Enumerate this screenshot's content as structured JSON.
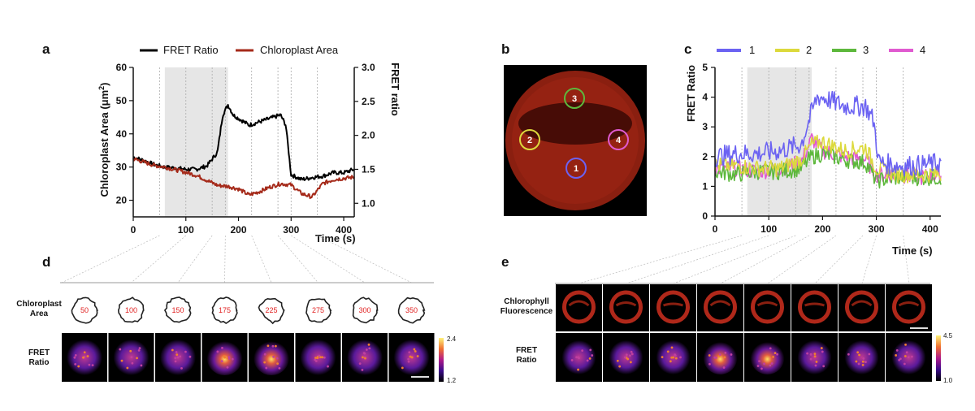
{
  "panel_labels": [
    "a",
    "b",
    "c",
    "d",
    "e"
  ],
  "colors": {
    "fret": "#000000",
    "area": "#a52a1a",
    "roi1": "#6b62f2",
    "roi2": "#dcd93c",
    "roi3": "#5db83c",
    "roi4": "#e05ad0",
    "shade": "#e6e6e6"
  },
  "chart_data": [
    {
      "id": "a",
      "type": "line",
      "title": "",
      "legend": [
        "FRET Ratio",
        "Chloroplast Area"
      ],
      "legend_placement": "top",
      "xlabel": "Time (s)",
      "ylabel_left": "Chloroplast Area (μm²)",
      "ylabel_left_text": "Chloroplast Area (μm",
      "ylabel_left_sup": "2",
      "ylabel_left_close": ")",
      "ylabel_right": "FRET ratio",
      "xlim": [
        0,
        420
      ],
      "ylim_left": [
        15,
        60
      ],
      "ylim_right": [
        0.8,
        3.0
      ],
      "xticks": [
        "0",
        "100",
        "200",
        "300",
        "400"
      ],
      "yticks_left": [
        "20",
        "30",
        "40",
        "50",
        "60"
      ],
      "yticks_right": [
        "1.0",
        "1.5",
        "2.0",
        "2.5",
        "3.0"
      ],
      "shaded_interval": [
        60,
        180
      ],
      "event_lines": [
        50,
        100,
        150,
        175,
        225,
        275,
        300,
        350
      ],
      "series": [
        {
          "name": "FRET Ratio",
          "axis": "right",
          "x": [
            0,
            20,
            40,
            60,
            80,
            100,
            120,
            140,
            160,
            170,
            180,
            190,
            200,
            220,
            240,
            260,
            280,
            290,
            300,
            320,
            340,
            360,
            380,
            400,
            420
          ],
          "y": [
            1.68,
            1.63,
            1.57,
            1.53,
            1.52,
            1.5,
            1.5,
            1.55,
            1.75,
            2.3,
            2.45,
            2.3,
            2.25,
            2.15,
            2.2,
            2.25,
            2.3,
            2.15,
            1.42,
            1.35,
            1.38,
            1.4,
            1.45,
            1.45,
            1.5
          ]
        },
        {
          "name": "Chloroplast Area",
          "axis": "left",
          "x": [
            0,
            20,
            40,
            60,
            80,
            100,
            120,
            140,
            160,
            180,
            200,
            220,
            240,
            260,
            280,
            300,
            320,
            340,
            360,
            380,
            400,
            420
          ],
          "y": [
            32.5,
            31.5,
            30.5,
            30.0,
            29.2,
            28.4,
            27.5,
            26.0,
            24.5,
            24.2,
            23.4,
            21.6,
            22.6,
            24.0,
            25.0,
            24.6,
            22.0,
            21.0,
            25.0,
            26.2,
            26.6,
            27.0
          ]
        }
      ]
    },
    {
      "id": "c",
      "type": "line",
      "title": "",
      "legend": [
        "1",
        "2",
        "3",
        "4"
      ],
      "legend_placement": "top",
      "xlabel": "Time (s)",
      "ylabel": "FRET Ratio",
      "xlim": [
        0,
        420
      ],
      "ylim": [
        0,
        5
      ],
      "xticks": [
        "0",
        "100",
        "200",
        "300",
        "400"
      ],
      "yticks": [
        "0",
        "1",
        "2",
        "3",
        "4",
        "5"
      ],
      "shaded_interval": [
        60,
        180
      ],
      "event_lines": [
        50,
        100,
        150,
        175,
        225,
        275,
        300,
        350
      ],
      "series": [
        {
          "name": "1",
          "x": [
            0,
            40,
            80,
            120,
            160,
            180,
            190,
            200,
            240,
            280,
            295,
            305,
            340,
            380,
            420
          ],
          "y": [
            2.0,
            2.1,
            2.1,
            2.2,
            2.4,
            3.5,
            4.0,
            4.0,
            3.7,
            3.7,
            3.2,
            1.8,
            1.7,
            1.7,
            1.8
          ]
        },
        {
          "name": "2",
          "x": [
            0,
            40,
            80,
            120,
            160,
            180,
            200,
            240,
            280,
            300,
            340,
            380,
            420
          ],
          "y": [
            1.7,
            1.7,
            1.6,
            1.6,
            1.9,
            2.4,
            2.5,
            2.2,
            2.3,
            1.6,
            1.4,
            1.4,
            1.4
          ]
        },
        {
          "name": "3",
          "x": [
            0,
            40,
            80,
            120,
            160,
            180,
            200,
            240,
            280,
            300,
            340,
            380,
            420
          ],
          "y": [
            1.5,
            1.4,
            1.5,
            1.5,
            1.6,
            2.0,
            2.1,
            1.9,
            1.8,
            1.2,
            1.3,
            1.3,
            1.3
          ]
        },
        {
          "name": "4",
          "x": [
            0,
            40,
            80,
            120,
            160,
            180,
            200,
            240,
            280,
            300,
            340,
            380,
            420
          ],
          "y": [
            1.6,
            1.6,
            1.5,
            1.6,
            1.8,
            2.6,
            2.2,
            2.0,
            1.9,
            1.4,
            1.4,
            1.3,
            1.4
          ]
        }
      ]
    }
  ],
  "panel_b": {
    "roi_labels": [
      "1",
      "2",
      "3",
      "4"
    ]
  },
  "panel_d": {
    "row_labels": [
      [
        "Chloroplast",
        "Area"
      ],
      [
        "FRET",
        "Ratio"
      ]
    ],
    "timepoints": [
      "50",
      "100",
      "150",
      "175",
      "225",
      "275",
      "300",
      "350"
    ],
    "colorbar": {
      "max": "2.4",
      "min": "1.2"
    }
  },
  "panel_e": {
    "row_labels": [
      [
        "Chlorophyll",
        "Fluorescence"
      ],
      [
        "FRET",
        "Ratio"
      ]
    ],
    "colorbar": {
      "max": "4.5",
      "min": "1.0"
    }
  }
}
